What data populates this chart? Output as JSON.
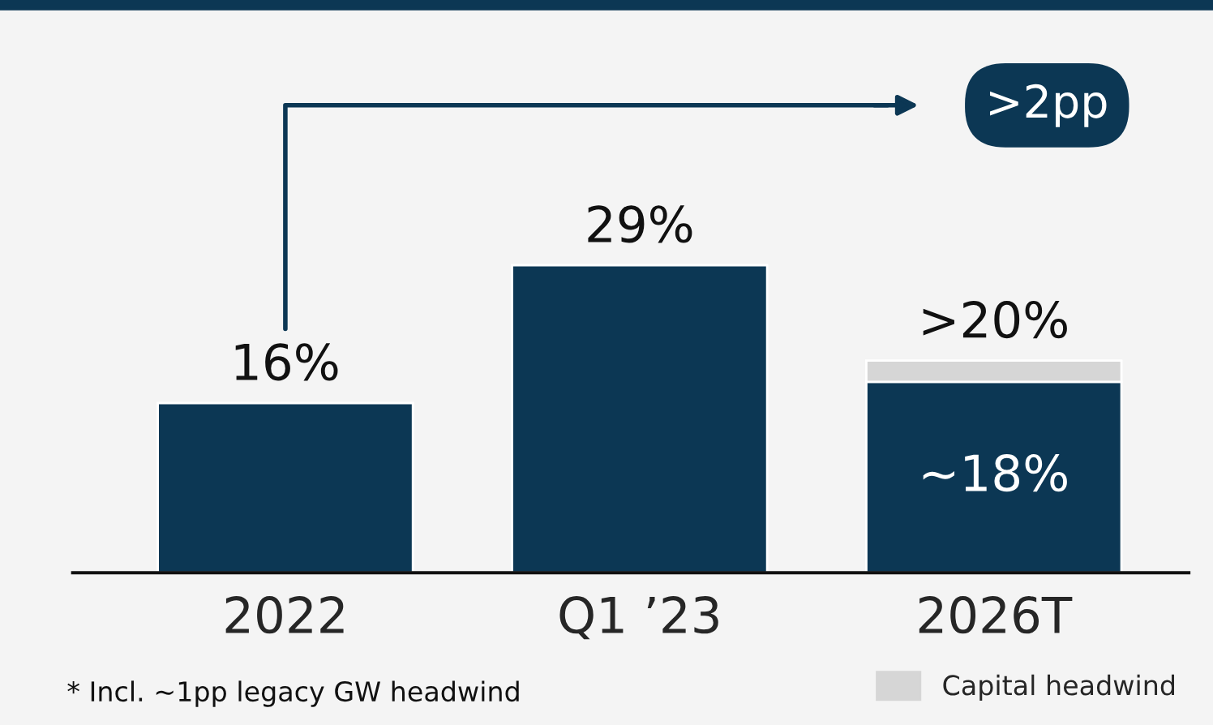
{
  "chart_data": {
    "type": "bar",
    "stacked": true,
    "categories": [
      "2022",
      "Q1 ’23",
      "2026T"
    ],
    "series": [
      {
        "color": "#0c3754",
        "values": [
          16,
          29,
          18
        ],
        "value_labels": [
          "16%",
          "29%",
          "~18%"
        ]
      },
      {
        "name": "Capital headwind",
        "color": "#d6d6d6",
        "values": [
          null,
          null,
          2
        ]
      }
    ],
    "totals": [
      null,
      null,
      ">20%"
    ],
    "annotations": [
      {
        "text": ">2pp"
      },
      "* Incl. ~1pp legacy GW headwind"
    ],
    "legend": "bottom right",
    "grid": false
  }
}
